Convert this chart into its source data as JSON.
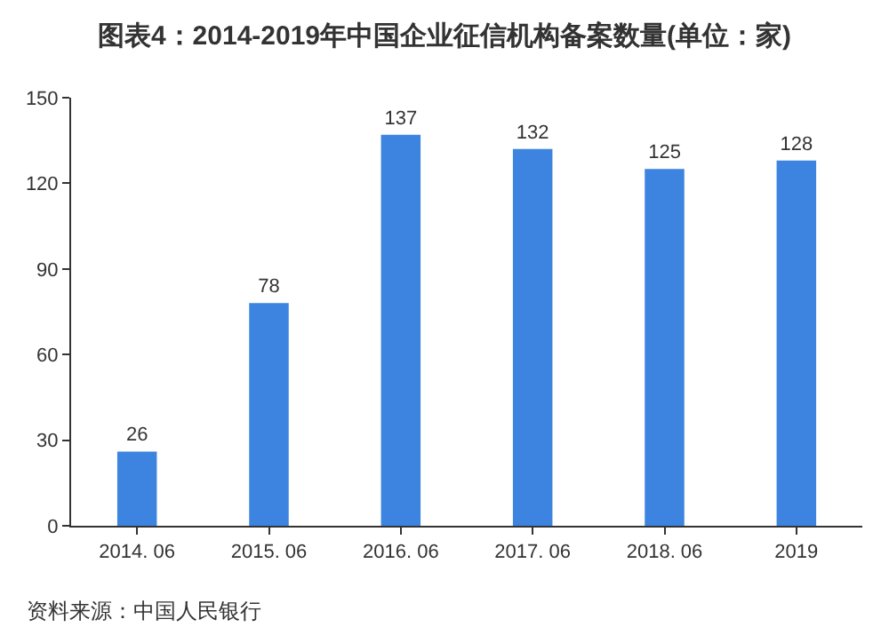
{
  "chart_data": {
    "type": "bar",
    "title": "图表4：2014-2019年中国企业征信机构备案数量(单位：家)",
    "categories": [
      "2014. 06",
      "2015. 06",
      "2016. 06",
      "2017. 06",
      "2018. 06",
      "2019"
    ],
    "values": [
      26,
      78,
      137,
      132,
      125,
      128
    ],
    "color": "#3d84e0",
    "data_labels": true,
    "ylim": [
      0,
      150
    ],
    "yticks": [
      0,
      30,
      60,
      90,
      120,
      150
    ],
    "grid": false,
    "annotations": [
      "资料来源：中国人民银行"
    ]
  }
}
